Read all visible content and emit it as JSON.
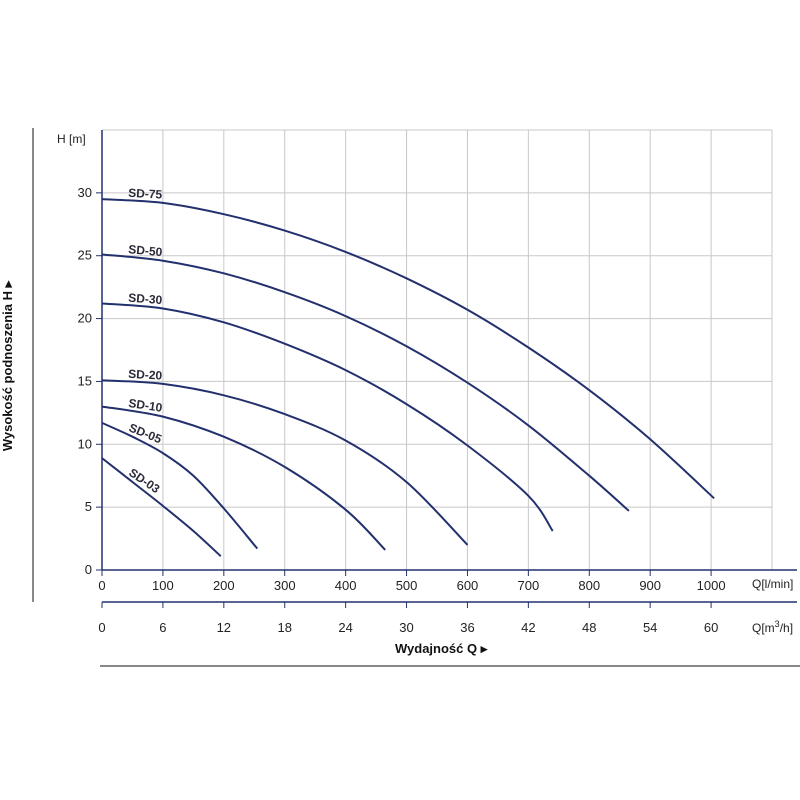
{
  "chart_data": {
    "type": "line",
    "y_unit_label": "H [m]",
    "ylabel": "Wysokość podnoszenia H ▸",
    "xlabel": "Wydajność Q ▸",
    "x_unit_label": "Q[l/min]",
    "x2_unit_label_base": "Q[m",
    "x2_unit_label_sup": "3",
    "x2_unit_label_end": "/h]",
    "xlim": [
      0,
      1100
    ],
    "ylim": [
      0,
      35
    ],
    "x_ticks": [
      0,
      100,
      200,
      300,
      400,
      500,
      600,
      700,
      800,
      900,
      1000
    ],
    "y_ticks": [
      0,
      5,
      10,
      15,
      20,
      25,
      30
    ],
    "x2_ticks": [
      0,
      6,
      12,
      18,
      24,
      30,
      36,
      42,
      48,
      54,
      60
    ],
    "grid": true,
    "colors": {
      "curve": "#23306e",
      "grid": "#c8c8c8",
      "axis": "#23306e"
    },
    "series": [
      {
        "name": "SD-75",
        "x": [
          0,
          100,
          200,
          300,
          400,
          500,
          600,
          700,
          800,
          900,
          1005
        ],
        "y": [
          29.5,
          29.2,
          28.3,
          27.0,
          25.3,
          23.2,
          20.7,
          17.7,
          14.3,
          10.4,
          5.7
        ]
      },
      {
        "name": "SD-50",
        "x": [
          0,
          100,
          200,
          300,
          400,
          500,
          600,
          700,
          800,
          865
        ],
        "y": [
          25.1,
          24.6,
          23.6,
          22.1,
          20.2,
          17.8,
          14.9,
          11.5,
          7.5,
          4.7
        ]
      },
      {
        "name": "SD-30",
        "x": [
          0,
          100,
          200,
          300,
          400,
          500,
          600,
          700,
          740
        ],
        "y": [
          21.2,
          20.8,
          19.7,
          18.0,
          15.9,
          13.2,
          9.9,
          5.9,
          3.1
        ]
      },
      {
        "name": "SD-20",
        "x": [
          0,
          100,
          200,
          300,
          400,
          500,
          600
        ],
        "y": [
          15.1,
          14.8,
          13.9,
          12.4,
          10.3,
          7.0,
          2.0
        ]
      },
      {
        "name": "SD-10",
        "x": [
          0,
          100,
          200,
          300,
          400,
          465
        ],
        "y": [
          13.0,
          12.2,
          10.6,
          8.2,
          4.8,
          1.6
        ]
      },
      {
        "name": "SD-05",
        "x": [
          0,
          50,
          100,
          150,
          200,
          255
        ],
        "y": [
          11.7,
          10.6,
          9.3,
          7.5,
          4.9,
          1.7
        ]
      },
      {
        "name": "SD-03",
        "x": [
          0,
          50,
          100,
          150,
          195
        ],
        "y": [
          8.9,
          7.0,
          5.1,
          3.1,
          1.1
        ]
      }
    ]
  }
}
